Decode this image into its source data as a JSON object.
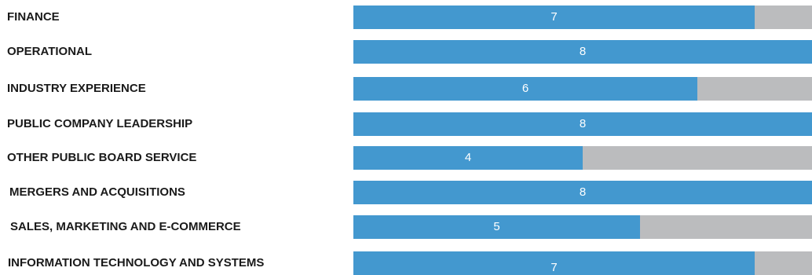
{
  "chart_data": {
    "type": "bar",
    "orientation": "horizontal",
    "categories": [
      "FINANCE",
      "OPERATIONAL",
      "INDUSTRY EXPERIENCE",
      "PUBLIC COMPANY LEADERSHIP",
      "OTHER PUBLIC BOARD SERVICE",
      "MERGERS AND ACQUISITIONS",
      "SALES, MARKETING AND E-COMMERCE",
      "INFORMATION TECHNOLOGY AND SYSTEMS"
    ],
    "values": [
      7,
      8,
      6,
      8,
      4,
      8,
      5,
      7
    ],
    "value_labels": [
      "7",
      "8",
      "6",
      "8",
      "4",
      "8",
      "5",
      "7"
    ],
    "xlim": [
      0,
      8
    ],
    "grid": false,
    "legend": "none",
    "colors": {
      "bar": "#4398cf",
      "track": "#bbbcbe",
      "label_text": "#1a1a1a",
      "value_text": "#ffffff"
    }
  }
}
